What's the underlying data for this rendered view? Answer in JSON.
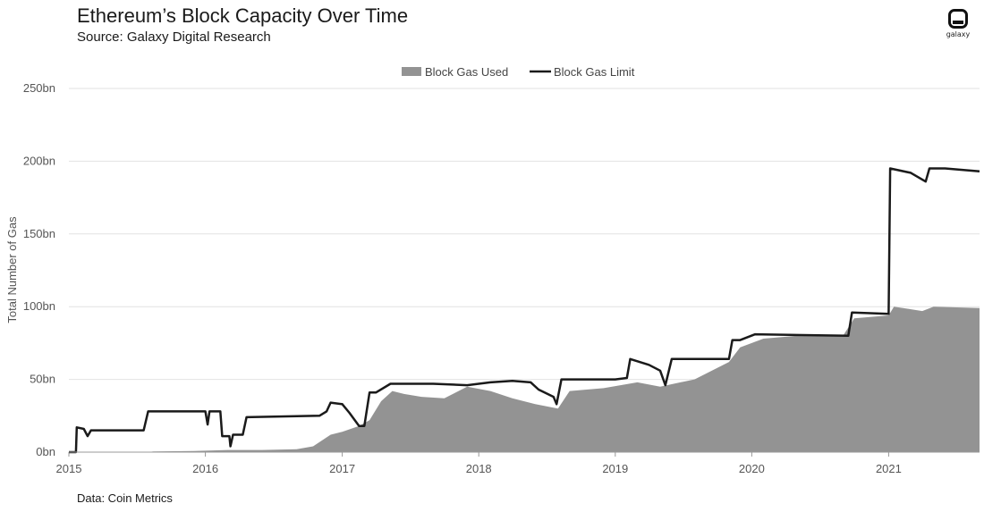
{
  "header": {
    "title": "Ethereum’s Block Capacity Over Time",
    "subtitle": "Source: Galaxy Digital Research"
  },
  "logo": {
    "text": "galaxy"
  },
  "footer": {
    "note": "Data: Coin Metrics"
  },
  "colors": {
    "used": "#939393",
    "limit": "#1a1a1a",
    "grid": "#e2e2e2"
  },
  "chart_data": {
    "type": "area",
    "ylabel": "Total Number of Gas",
    "xlabel": "",
    "ylim": [
      0,
      250
    ],
    "y_unit": "bn",
    "yticks": [
      "0bn",
      "50bn",
      "100bn",
      "150bn",
      "200bn",
      "250bn"
    ],
    "xticks": [
      "2015",
      "2016",
      "2017",
      "2018",
      "2019",
      "2020",
      "2021"
    ],
    "x_range": [
      "2015-01-01",
      "2021-09-01"
    ],
    "grid": "horizontal",
    "legend_position": "top-center",
    "series": [
      {
        "name": "Block Gas Used",
        "style": "area",
        "points": [
          [
            "2015-01-01",
            0
          ],
          [
            "2015-07-30",
            0
          ],
          [
            "2015-08-15",
            0.5
          ],
          [
            "2015-12-01",
            0.8
          ],
          [
            "2016-01-01",
            1
          ],
          [
            "2016-03-01",
            1.5
          ],
          [
            "2016-06-01",
            1.5
          ],
          [
            "2016-09-01",
            2
          ],
          [
            "2016-10-15",
            4
          ],
          [
            "2016-12-01",
            12
          ],
          [
            "2017-01-01",
            14
          ],
          [
            "2017-02-15",
            18
          ],
          [
            "2017-03-15",
            22
          ],
          [
            "2017-04-15",
            35
          ],
          [
            "2017-05-15",
            42
          ],
          [
            "2017-06-15",
            40
          ],
          [
            "2017-08-01",
            38
          ],
          [
            "2017-10-01",
            37
          ],
          [
            "2017-12-01",
            45
          ],
          [
            "2018-02-01",
            42
          ],
          [
            "2018-04-01",
            37
          ],
          [
            "2018-06-01",
            33
          ],
          [
            "2018-08-01",
            30
          ],
          [
            "2018-09-01",
            42
          ],
          [
            "2018-12-01",
            44
          ],
          [
            "2019-03-01",
            48
          ],
          [
            "2019-05-01",
            45
          ],
          [
            "2019-08-01",
            50
          ],
          [
            "2019-11-01",
            62
          ],
          [
            "2019-12-01",
            72
          ],
          [
            "2020-02-01",
            78
          ],
          [
            "2020-05-01",
            80
          ],
          [
            "2020-09-01",
            80
          ],
          [
            "2020-10-01",
            92
          ],
          [
            "2021-01-01",
            94
          ],
          [
            "2021-01-15",
            100
          ],
          [
            "2021-04-01",
            97
          ],
          [
            "2021-05-01",
            100
          ],
          [
            "2021-09-01",
            99
          ]
        ]
      },
      {
        "name": "Block Gas Limit",
        "style": "line",
        "points": [
          [
            "2015-01-01",
            0
          ],
          [
            "2015-01-20",
            0
          ],
          [
            "2015-01-22",
            17
          ],
          [
            "2015-02-10",
            16
          ],
          [
            "2015-02-20",
            11
          ],
          [
            "2015-03-01",
            15
          ],
          [
            "2015-07-20",
            15
          ],
          [
            "2015-08-01",
            28
          ],
          [
            "2016-01-01",
            28
          ],
          [
            "2016-01-07",
            19
          ],
          [
            "2016-01-12",
            28
          ],
          [
            "2016-02-10",
            28
          ],
          [
            "2016-02-15",
            11
          ],
          [
            "2016-03-05",
            11
          ],
          [
            "2016-03-08",
            4
          ],
          [
            "2016-03-15",
            12
          ],
          [
            "2016-04-10",
            12
          ],
          [
            "2016-04-20",
            24
          ],
          [
            "2016-11-01",
            25
          ],
          [
            "2016-11-20",
            28
          ],
          [
            "2016-12-01",
            34
          ],
          [
            "2017-01-01",
            33
          ],
          [
            "2017-01-20",
            27
          ],
          [
            "2017-02-15",
            18
          ],
          [
            "2017-03-01",
            18
          ],
          [
            "2017-03-15",
            41
          ],
          [
            "2017-04-01",
            41
          ],
          [
            "2017-05-10",
            47
          ],
          [
            "2017-09-01",
            47
          ],
          [
            "2017-12-01",
            46
          ],
          [
            "2018-02-01",
            48
          ],
          [
            "2018-04-01",
            49
          ],
          [
            "2018-05-20",
            48
          ],
          [
            "2018-06-10",
            43
          ],
          [
            "2018-07-20",
            38
          ],
          [
            "2018-07-28",
            33
          ],
          [
            "2018-08-10",
            50
          ],
          [
            "2019-01-01",
            50
          ],
          [
            "2019-02-01",
            51
          ],
          [
            "2019-02-10",
            64
          ],
          [
            "2019-04-01",
            60
          ],
          [
            "2019-05-01",
            56
          ],
          [
            "2019-05-15",
            46
          ],
          [
            "2019-06-01",
            64
          ],
          [
            "2019-11-01",
            64
          ],
          [
            "2019-11-10",
            77
          ],
          [
            "2019-12-01",
            77
          ],
          [
            "2020-01-10",
            81
          ],
          [
            "2020-09-15",
            80
          ],
          [
            "2020-09-25",
            96
          ],
          [
            "2021-01-01",
            95
          ],
          [
            "2021-01-05",
            195
          ],
          [
            "2021-03-01",
            192
          ],
          [
            "2021-04-10",
            186
          ],
          [
            "2021-04-20",
            195
          ],
          [
            "2021-06-01",
            195
          ],
          [
            "2021-09-01",
            193
          ]
        ]
      }
    ]
  }
}
